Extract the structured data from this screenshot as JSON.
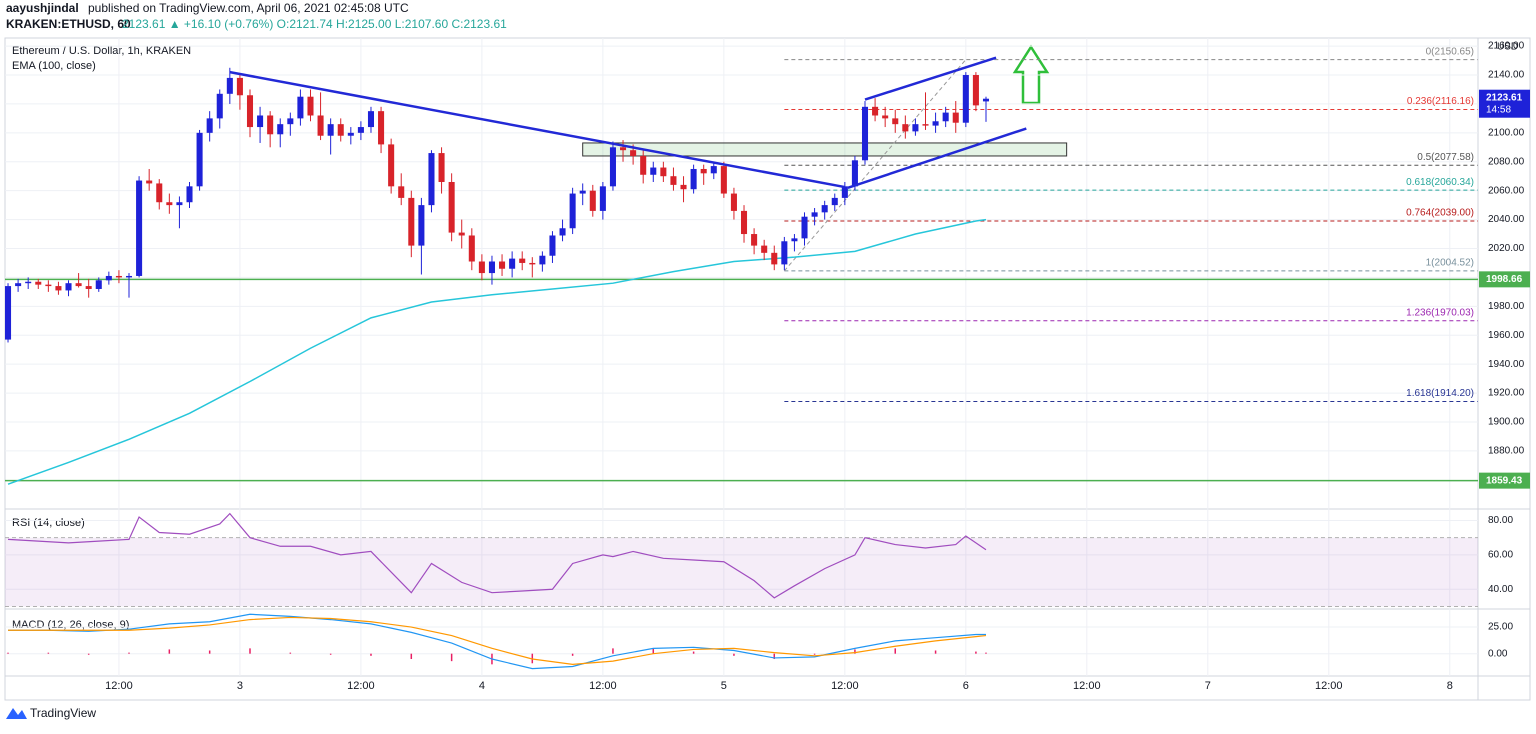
{
  "header": {
    "publisher": "aayushjindal",
    "published": "published on TradingView.com, April 06, 2021 02:45:08 UTC",
    "symbol": "KRAKEN:ETHUSD, 60",
    "quote": "2123.61  ▲ +16.10 (+0.76%)  O:2121.74  H:2125.00  L:2107.60  C:2123.61"
  },
  "footer": {
    "brand": "TradingView"
  },
  "chart_data": {
    "type": "candlestick",
    "xlim": [
      -0.3,
      145.8
    ],
    "xticks": [
      {
        "value": 11,
        "label": "12:00"
      },
      {
        "value": 23,
        "label": "3"
      },
      {
        "value": 35,
        "label": "12:00"
      },
      {
        "value": 47,
        "label": "4"
      },
      {
        "value": 59,
        "label": "12:00"
      },
      {
        "value": 71,
        "label": "5"
      },
      {
        "value": 83,
        "label": "12:00"
      },
      {
        "value": 95,
        "label": "6"
      },
      {
        "value": 107,
        "label": "12:00"
      },
      {
        "value": 119,
        "label": "7"
      },
      {
        "value": 131,
        "label": "12:00"
      },
      {
        "value": 143,
        "label": "8"
      }
    ],
    "grid": true,
    "main": {
      "title": "Ethereum / U.S. Dollar, 1h, KRAKEN",
      "currency": "USD",
      "ylim": [
        1840.5,
        2165.6
      ],
      "yticks": [
        {
          "value": 1880,
          "label": "1880.00"
        },
        {
          "value": 1900,
          "label": "1900.00"
        },
        {
          "value": 1920,
          "label": "1920.00"
        },
        {
          "value": 1940,
          "label": "1940.00"
        },
        {
          "value": 1960,
          "label": "1960.00"
        },
        {
          "value": 1980,
          "label": "1980.00"
        },
        {
          "value": 2000,
          "label": "2000.00"
        },
        {
          "value": 2020,
          "label": "2020.00"
        },
        {
          "value": 2040,
          "label": "2040.00"
        },
        {
          "value": 2060,
          "label": "2060.00"
        },
        {
          "value": 2080,
          "label": "2080.00"
        },
        {
          "value": 2100,
          "label": "2100.00"
        },
        {
          "value": 2120,
          "label": "2120.00"
        },
        {
          "value": 2140,
          "label": "2140.00"
        },
        {
          "value": 2160,
          "label": "2160.00"
        }
      ],
      "up_color": "#1e22d8",
      "down_color": "#d8232a",
      "ohlc": [
        [
          1957,
          1996,
          1955,
          1994
        ],
        [
          1994,
          1999,
          1990,
          1996
        ],
        [
          1996,
          2000,
          1992,
          1997
        ],
        [
          1997,
          1999,
          1992,
          1995
        ],
        [
          1995,
          1998,
          1990,
          1994
        ],
        [
          1994,
          1997,
          1988,
          1991
        ],
        [
          1991,
          1998,
          1987,
          1996
        ],
        [
          1996,
          2003,
          1993,
          1994
        ],
        [
          1994,
          1999,
          1986,
          1992
        ],
        [
          1992,
          2000,
          1990,
          1998
        ],
        [
          1998,
          2004,
          1995,
          2001
        ],
        [
          2001,
          2005,
          1996,
          2000
        ],
        [
          2000,
          2003,
          1986,
          2001
        ],
        [
          2001,
          2070,
          2000,
          2067
        ],
        [
          2067,
          2075,
          2060,
          2065
        ],
        [
          2065,
          2068,
          2047,
          2052
        ],
        [
          2052,
          2058,
          2044,
          2050
        ],
        [
          2050,
          2056,
          2034,
          2052
        ],
        [
          2052,
          2066,
          2048,
          2063
        ],
        [
          2063,
          2102,
          2060,
          2100
        ],
        [
          2100,
          2115,
          2094,
          2110
        ],
        [
          2110,
          2130,
          2103,
          2127
        ],
        [
          2127,
          2145,
          2120,
          2138
        ],
        [
          2138,
          2140,
          2116,
          2126
        ],
        [
          2126,
          2130,
          2097,
          2104
        ],
        [
          2104,
          2118,
          2093,
          2112
        ],
        [
          2112,
          2115,
          2090,
          2099
        ],
        [
          2099,
          2110,
          2090,
          2106
        ],
        [
          2106,
          2114,
          2098,
          2110
        ],
        [
          2110,
          2130,
          2105,
          2125
        ],
        [
          2125,
          2130,
          2108,
          2112
        ],
        [
          2112,
          2128,
          2095,
          2098
        ],
        [
          2098,
          2110,
          2085,
          2106
        ],
        [
          2106,
          2110,
          2094,
          2098
        ],
        [
          2098,
          2104,
          2092,
          2100
        ],
        [
          2100,
          2108,
          2095,
          2104
        ],
        [
          2104,
          2118,
          2100,
          2115
        ],
        [
          2115,
          2118,
          2086,
          2092
        ],
        [
          2092,
          2096,
          2058,
          2063
        ],
        [
          2063,
          2072,
          2050,
          2055
        ],
        [
          2055,
          2060,
          2014,
          2022
        ],
        [
          2022,
          2055,
          2002,
          2050
        ],
        [
          2050,
          2088,
          2045,
          2086
        ],
        [
          2086,
          2090,
          2058,
          2066
        ],
        [
          2066,
          2072,
          2025,
          2031
        ],
        [
          2031,
          2040,
          2020,
          2029
        ],
        [
          2029,
          2034,
          2005,
          2011
        ],
        [
          2011,
          2016,
          1998,
          2003
        ],
        [
          2003,
          2015,
          1995,
          2011
        ],
        [
          2011,
          2016,
          2001,
          2006
        ],
        [
          2006,
          2018,
          2000,
          2013
        ],
        [
          2013,
          2018,
          2005,
          2010
        ],
        [
          2010,
          2014,
          2000,
          2009
        ],
        [
          2009,
          2018,
          2004,
          2015
        ],
        [
          2015,
          2032,
          2010,
          2029
        ],
        [
          2029,
          2040,
          2025,
          2034
        ],
        [
          2034,
          2062,
          2030,
          2058
        ],
        [
          2058,
          2065,
          2050,
          2060
        ],
        [
          2060,
          2064,
          2042,
          2046
        ],
        [
          2046,
          2066,
          2040,
          2063
        ],
        [
          2063,
          2094,
          2060,
          2090
        ],
        [
          2090,
          2095,
          2080,
          2088
        ],
        [
          2088,
          2092,
          2078,
          2084
        ],
        [
          2084,
          2088,
          2065,
          2071
        ],
        [
          2071,
          2080,
          2066,
          2076
        ],
        [
          2076,
          2080,
          2066,
          2070
        ],
        [
          2070,
          2076,
          2060,
          2064
        ],
        [
          2064,
          2070,
          2052,
          2061
        ],
        [
          2061,
          2078,
          2058,
          2075
        ],
        [
          2075,
          2078,
          2064,
          2072
        ],
        [
          2072,
          2080,
          2068,
          2077
        ],
        [
          2077,
          2080,
          2055,
          2058
        ],
        [
          2058,
          2062,
          2040,
          2046
        ],
        [
          2046,
          2050,
          2024,
          2030
        ],
        [
          2030,
          2034,
          2016,
          2022
        ],
        [
          2022,
          2026,
          2012,
          2017
        ],
        [
          2017,
          2022,
          2005,
          2009
        ],
        [
          2009,
          2028,
          2005,
          2025
        ],
        [
          2025,
          2030,
          2018,
          2027
        ],
        [
          2027,
          2045,
          2022,
          2042
        ],
        [
          2042,
          2048,
          2036,
          2045
        ],
        [
          2045,
          2053,
          2040,
          2050
        ],
        [
          2050,
          2058,
          2046,
          2055
        ],
        [
          2055,
          2066,
          2050,
          2063
        ],
        [
          2063,
          2084,
          2060,
          2081
        ],
        [
          2081,
          2122,
          2078,
          2118
        ],
        [
          2118,
          2124,
          2108,
          2112
        ],
        [
          2112,
          2118,
          2104,
          2110
        ],
        [
          2110,
          2116,
          2100,
          2106
        ],
        [
          2106,
          2112,
          2096,
          2101
        ],
        [
          2101,
          2110,
          2098,
          2106
        ],
        [
          2106,
          2128,
          2102,
          2105
        ],
        [
          2105,
          2114,
          2100,
          2108
        ],
        [
          2108,
          2118,
          2104,
          2114
        ],
        [
          2114,
          2122,
          2100,
          2107
        ],
        [
          2107,
          2142,
          2104,
          2140
        ],
        [
          2140,
          2142,
          2115,
          2119
        ],
        [
          2121.74,
          2125,
          2107.6,
          2123.61
        ]
      ],
      "ema": {
        "name": "EMA (100, close)",
        "color": "#26c6da",
        "x": [
          0,
          6,
          12,
          18,
          24,
          30,
          36,
          42,
          48,
          54,
          60,
          66,
          72,
          78,
          84,
          90,
          96,
          97
        ],
        "values": [
          1857,
          1872,
          1888,
          1906,
          1928,
          1951,
          1972,
          1983,
          1988,
          1992,
          1996,
          2004,
          2011,
          2014,
          2018,
          2030,
          2039,
          2040
        ]
      },
      "trendlines": [
        {
          "color": "#2229d6",
          "x": [
            22,
            83
          ],
          "values": [
            2142,
            2062.5
          ]
        },
        {
          "color": "#2229d6",
          "x": [
            85,
            98
          ],
          "values": [
            2123,
            2152
          ]
        },
        {
          "color": "#2229d6",
          "x": [
            83.3,
            101
          ],
          "values": [
            2062,
            2103
          ]
        }
      ],
      "box": {
        "x": [
          57,
          105
        ],
        "values": [
          2093,
          2084
        ],
        "color": "#4caf50"
      },
      "hlines": [
        {
          "value": 1998.66,
          "label": "1998.66",
          "color": "#4caf50"
        },
        {
          "value": 1859.43,
          "label": "1859.43",
          "color": "#4caf50"
        }
      ],
      "last": {
        "value": 2123.61,
        "label": "2123.61",
        "countdown": "14:58",
        "color": "#1e22d8"
      },
      "fib_x": [
        77,
        95
      ],
      "fib": [
        {
          "value": 2150.65,
          "label": "0(2150.65)",
          "color": "#888888"
        },
        {
          "value": 2116.16,
          "label": "0.236(2116.16)",
          "color": "#e53935"
        },
        {
          "value": 2077.58,
          "label": "0.5(2077.58)",
          "color": "#555555"
        },
        {
          "value": 2060.34,
          "label": "0.618(2060.34)",
          "color": "#26a69a"
        },
        {
          "value": 2039.0,
          "label": "0.764(2039.00)",
          "color": "#b71c1c"
        },
        {
          "value": 2004.52,
          "label": "1(2004.52)",
          "color": "#78909c"
        },
        {
          "value": 1970.03,
          "label": "1.236(1970.03)",
          "color": "#9c27b0"
        },
        {
          "value": 1914.2,
          "label": "1.618(1914.20)",
          "color": "#283593"
        }
      ]
    },
    "rsi": {
      "title": "RSI (14, close)",
      "color": "#a04dbf",
      "ylim": [
        29.1,
        86.1
      ],
      "yticks": [
        {
          "value": 80,
          "label": "80.00"
        },
        {
          "value": 60,
          "label": "60.00"
        },
        {
          "value": 40,
          "label": "40.00"
        }
      ],
      "bands": [
        30,
        70
      ],
      "x": [
        0,
        3,
        6,
        9,
        12,
        13,
        15,
        18,
        21,
        22,
        24,
        27,
        30,
        33,
        36,
        38,
        40,
        42,
        45,
        48,
        51,
        54,
        56,
        59,
        60,
        62,
        65,
        68,
        71,
        74,
        76,
        78,
        81,
        84,
        85,
        88,
        91,
        94,
        95,
        97
      ],
      "values": [
        69,
        68,
        67,
        68,
        69,
        82,
        73,
        72,
        78,
        84,
        70,
        65,
        65,
        60,
        62,
        50,
        38,
        55,
        44,
        38,
        39,
        40,
        55,
        60,
        59,
        62,
        58,
        57,
        56,
        45,
        35,
        42,
        52,
        60,
        70,
        66,
        64,
        66,
        71,
        63
      ]
    },
    "macd": {
      "title": "MACD (12, 26, close, 9)",
      "ylim": [
        -20,
        41
      ],
      "yticks": [
        {
          "value": 25,
          "label": "25.00"
        },
        {
          "value": 0,
          "label": "0.00"
        }
      ],
      "x": [
        0,
        4,
        8,
        12,
        16,
        20,
        24,
        28,
        32,
        36,
        40,
        44,
        48,
        52,
        56,
        60,
        64,
        68,
        72,
        76,
        80,
        84,
        88,
        92,
        96,
        97
      ],
      "series": [
        {
          "color": "#2196f3",
          "values": [
            22,
            22,
            21,
            23,
            28,
            30,
            37,
            35,
            32,
            28,
            20,
            10,
            -5,
            -14,
            -12,
            -2,
            5,
            6,
            3,
            -4,
            -3,
            5,
            12,
            15,
            18,
            18
          ]
        },
        {
          "color": "#ff9800",
          "values": [
            22,
            22,
            22,
            22,
            24,
            27,
            32,
            34,
            33,
            30,
            25,
            17,
            5,
            -5,
            -10,
            -7,
            0,
            4,
            5,
            1,
            -2,
            1,
            7,
            12,
            16,
            17
          ]
        }
      ],
      "hist": {
        "color": "#e91e63",
        "values": [
          0,
          0,
          -1,
          1,
          4,
          3,
          5,
          1,
          -1,
          -2,
          -5,
          -7,
          -10,
          -9,
          -2,
          5,
          5,
          2,
          -2,
          -5,
          -1,
          4,
          5,
          3,
          2,
          1
        ]
      }
    }
  }
}
